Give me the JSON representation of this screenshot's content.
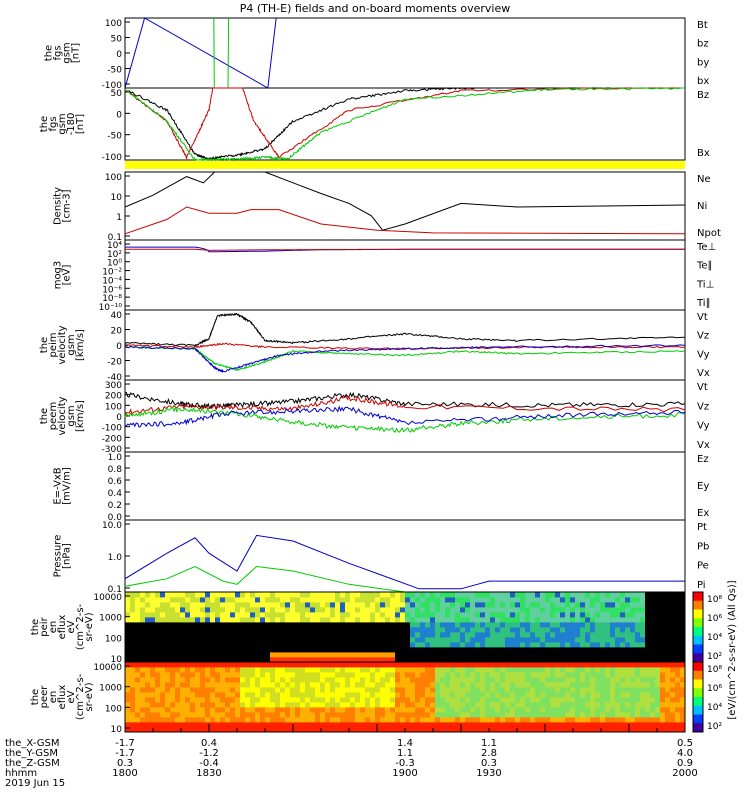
{
  "title": "P4 (TH-E) fields and on-board moments overview",
  "colors": {
    "black": "#000000",
    "red": "#cc0000",
    "green": "#00cc00",
    "blue": "#0000cc",
    "yellow": "#ffff00"
  },
  "chart_data": [
    {
      "type": "line",
      "panel": "fgs_gsm",
      "ylabel": [
        "the",
        "fgs",
        "gsm",
        "[nT]"
      ],
      "ylim": [
        -100,
        100
      ],
      "ticks": [
        "100",
        "50",
        "0",
        "-50",
        "-100"
      ],
      "legend": [
        {
          "name": "Bt",
          "color": "black"
        },
        {
          "name": "bz",
          "color": "red"
        },
        {
          "name": "by",
          "color": "green"
        },
        {
          "name": "bx",
          "color": "blue"
        }
      ],
      "series": [
        {
          "name": "bx",
          "color": "blue",
          "x": [
            1800,
            1807,
            1851,
            1854
          ],
          "y": [
            -100,
            100,
            -100,
            100
          ]
        },
        {
          "name": "by",
          "color": "green",
          "x": [
            1831.7,
            1831.9,
            1836.8,
            1837.0
          ],
          "y": [
            100,
            -100,
            -100,
            100
          ]
        }
      ]
    },
    {
      "type": "line",
      "panel": "fgs_gsm_offset",
      "ylabel": [
        "the",
        "fgs",
        "gsm",
        "-180",
        "[nT]"
      ],
      "ylim": [
        -130,
        0
      ],
      "ticks": [
        "50",
        "0",
        "-50",
        "-100"
      ],
      "legend": [
        {
          "name": "Bz",
          "color": "black"
        },
        {
          "name": "Bx",
          "color": "green"
        }
      ],
      "series": [
        {
          "name": "black",
          "color": "black",
          "x": [
            1800,
            1815,
            1825,
            1830,
            1841,
            1850,
            1860,
            1880,
            1900,
            1920,
            1940,
            2000
          ],
          "y": [
            -2,
            -40,
            -120,
            -128,
            -120,
            -110,
            -60,
            -20,
            -5,
            0,
            2,
            2
          ]
        },
        {
          "name": "red",
          "color": "red",
          "x": [
            1800,
            1815,
            1822,
            1830,
            1833,
            1838,
            1846,
            1855,
            1880,
            1920,
            2000
          ],
          "y": [
            -3,
            -60,
            -125,
            -40,
            50,
            60,
            -60,
            -125,
            -40,
            -5,
            2
          ]
        },
        {
          "name": "green",
          "color": "green",
          "x": [
            1800,
            1815,
            1825,
            1830,
            1841,
            1850,
            1858,
            1870,
            1900,
            1950,
            2000
          ],
          "y": [
            -2,
            -60,
            -130,
            -130,
            -128,
            -125,
            -128,
            -80,
            -20,
            -3,
            0
          ]
        }
      ]
    },
    {
      "type": "line",
      "panel": "density",
      "ylabel": [
        "Density",
        "[cm-3]"
      ],
      "ylim": [
        0.1,
        200
      ],
      "ticks": [
        "100",
        "10",
        "1",
        "0.1"
      ],
      "legend": [
        {
          "name": "Ne",
          "color": "red"
        },
        {
          "name": "Ni",
          "color": "black"
        },
        {
          "name": "Npot",
          "color": "blue"
        }
      ],
      "series": [
        {
          "name": "Ni",
          "color": "black",
          "x": [
            1800,
            1810,
            1822,
            1828,
            1832,
            1838,
            1850,
            1860,
            1870,
            1880,
            1888,
            1892,
            1900,
            1920,
            1940,
            2000
          ],
          "y": [
            4,
            15,
            120,
            60,
            200,
            220,
            250,
            60,
            18,
            6,
            1.5,
            0.3,
            0.6,
            6,
            4,
            5
          ]
        },
        {
          "name": "Ne",
          "color": "red",
          "x": [
            1800,
            1815,
            1822,
            1830,
            1840,
            1845,
            1855,
            1870,
            1890,
            1910,
            2000
          ],
          "y": [
            0.2,
            1,
            4,
            2,
            2,
            3,
            3,
            0.6,
            0.3,
            0.22,
            0.2
          ]
        }
      ]
    },
    {
      "type": "line",
      "panel": "moms_t3",
      "ylabel": [
        "mog3",
        "[eV]"
      ],
      "ylim": [
        1e-10,
        100000.0
      ],
      "ticks": [
        "10⁴",
        "10²",
        "10⁰",
        "10⁻²",
        "10⁻⁴",
        "10⁻⁶",
        "10⁻⁸",
        "10⁻¹⁰"
      ],
      "legend": [
        {
          "name": "Te⊥",
          "color": "red"
        },
        {
          "name": "Te∥",
          "color": "black"
        },
        {
          "name": "Ti⊥",
          "color": "blue"
        },
        {
          "name": "Ti∥",
          "color": "green"
        }
      ],
      "series": [
        {
          "name": "Ti",
          "color": "blue",
          "x": [
            1800,
            1825,
            1830,
            1850,
            1870,
            1900,
            2000
          ],
          "y": [
            3000,
            3000,
            300,
            400,
            800,
            1000,
            1000
          ]
        },
        {
          "name": "Te",
          "color": "red",
          "x": [
            1800,
            1825,
            1830,
            1850,
            1870,
            1900,
            2000
          ],
          "y": [
            1000,
            1000,
            600,
            800,
            900,
            1000,
            1000
          ]
        }
      ]
    },
    {
      "type": "line",
      "panel": "peim_velocity",
      "ylabel": [
        "the",
        "peim",
        "velocity",
        "gsm",
        "[km/s]"
      ],
      "ylim": [
        -40,
        45
      ],
      "ticks": [
        "40",
        "20",
        "0",
        "-20",
        "-40"
      ],
      "legend": [
        {
          "name": "Vt",
          "color": "black"
        },
        {
          "name": "Vz",
          "color": "red"
        },
        {
          "name": "Vy",
          "color": "green"
        },
        {
          "name": "Vx",
          "color": "blue"
        }
      ],
      "series": [
        {
          "name": "Vt",
          "color": "black",
          "x": [
            1800,
            1825,
            1830,
            1833,
            1840,
            1845,
            1850,
            1860,
            1880,
            1900,
            1920,
            1940,
            2000
          ],
          "y": [
            5,
            2,
            10,
            38,
            40,
            30,
            8,
            5,
            10,
            16,
            10,
            8,
            12
          ]
        },
        {
          "name": "Vz",
          "color": "red",
          "x": [
            1800,
            1825,
            1835,
            1850,
            1900,
            1950,
            2000
          ],
          "y": [
            2,
            0,
            4,
            0,
            -2,
            0,
            0
          ]
        },
        {
          "name": "Vy",
          "color": "green",
          "x": [
            1800,
            1825,
            1832,
            1840,
            1850,
            1860,
            1880,
            1900,
            1920,
            1940,
            2000
          ],
          "y": [
            0,
            -2,
            -20,
            -28,
            -18,
            -5,
            -8,
            -10,
            -5,
            -8,
            -5
          ]
        },
        {
          "name": "Vx",
          "color": "blue",
          "x": [
            1800,
            1825,
            1832,
            1835,
            1845,
            1855,
            1870,
            1900,
            1930,
            2000
          ],
          "y": [
            0,
            -2,
            -25,
            -30,
            -20,
            -10,
            -5,
            -2,
            0,
            2
          ]
        }
      ]
    },
    {
      "type": "line",
      "panel": "peem_velocity",
      "ylabel": [
        "the",
        "peem",
        "velocity",
        "gsm",
        "[km/s]"
      ],
      "ylim": [
        -300,
        300
      ],
      "ticks": [
        "300",
        "200",
        "100",
        "0",
        "-100",
        "-200",
        "-300"
      ],
      "legend": [
        {
          "name": "Vt",
          "color": "black"
        },
        {
          "name": "Vz",
          "color": "red"
        },
        {
          "name": "Vy",
          "color": "green"
        },
        {
          "name": "Vx",
          "color": "blue"
        }
      ],
      "series": [
        {
          "name": "Vt",
          "color": "black",
          "x": [
            1800,
            1820,
            1830,
            1840,
            1860,
            1880,
            1900,
            1950,
            2000
          ],
          "y": [
            180,
            100,
            80,
            90,
            120,
            180,
            100,
            90,
            100
          ]
        },
        {
          "name": "Vz",
          "color": "red",
          "x": [
            1800,
            1820,
            1840,
            1860,
            1880,
            1900,
            2000
          ],
          "y": [
            30,
            80,
            70,
            60,
            150,
            80,
            50
          ]
        },
        {
          "name": "Vy",
          "color": "green",
          "x": [
            1800,
            1820,
            1840,
            1860,
            1880,
            1900,
            1920,
            1950,
            2000
          ],
          "y": [
            0,
            60,
            20,
            -50,
            -100,
            -120,
            -60,
            -20,
            10
          ]
        },
        {
          "name": "Vx",
          "color": "blue",
          "x": [
            1800,
            1820,
            1835,
            1860,
            1880,
            1900,
            1950,
            2000
          ],
          "y": [
            -80,
            -60,
            20,
            40,
            60,
            -60,
            0,
            30
          ]
        }
      ]
    },
    {
      "type": "line",
      "panel": "efield",
      "ylabel": [
        "E=-VxB",
        "[mV/m]"
      ],
      "ylim": [
        0,
        1.0
      ],
      "ticks": [
        "1.0",
        "0.8",
        "0.6",
        "0.4",
        "0.2",
        "0.0"
      ],
      "legend": [
        {
          "name": "Ez",
          "color": "red"
        },
        {
          "name": "Ey",
          "color": "green"
        },
        {
          "name": "Ex",
          "color": "blue"
        }
      ],
      "series": []
    },
    {
      "type": "line",
      "panel": "pressure",
      "ylabel": [
        "Pressure",
        "[nPa]"
      ],
      "ylim": [
        0.03,
        20
      ],
      "ticks": [
        "10.0",
        "1.0",
        "0.1"
      ],
      "legend": [
        {
          "name": "Pt",
          "color": "black"
        },
        {
          "name": "Pb",
          "color": "red"
        },
        {
          "name": "Pe",
          "color": "green"
        },
        {
          "name": "Pi",
          "color": "blue"
        }
      ],
      "series": [
        {
          "name": "Pi",
          "color": "blue",
          "x": [
            1800,
            1815,
            1825,
            1830,
            1840,
            1847,
            1860,
            1880,
            1905,
            1920,
            1930,
            2000
          ],
          "y": [
            0.1,
            1,
            4,
            1,
            0.2,
            5,
            3,
            0.4,
            0.04,
            0.04,
            0.08,
            0.08
          ]
        },
        {
          "name": "Pe",
          "color": "green",
          "x": [
            1800,
            1815,
            1825,
            1835,
            1840,
            1847,
            1860,
            1880,
            1900,
            1920,
            2000
          ],
          "y": [
            0.05,
            0.1,
            0.3,
            0.08,
            0.06,
            0.3,
            0.2,
            0.06,
            0.03,
            0.03,
            0.03
          ]
        }
      ]
    },
    {
      "type": "heatmap",
      "panel": "peir_eflux",
      "ylabel": [
        "the",
        "peir",
        "en",
        "eflux",
        "eV",
        "(cm^2-s-",
        "sr-eV)"
      ],
      "ticks": [
        "10000",
        "1000",
        "100",
        "10"
      ],
      "colorbar": [
        "10⁸",
        "10⁶",
        "10⁴",
        "10²"
      ],
      "zlabel": "[eV/(cm^2-s-sr-eV) (All Qs)]"
    },
    {
      "type": "heatmap",
      "panel": "peer_eflux",
      "ylabel": [
        "the",
        "peer",
        "en",
        "eflux",
        "eV",
        "(cm^2-s-",
        "sr-eV)"
      ],
      "ticks": [
        "10000",
        "1000",
        "100",
        "10"
      ],
      "colorbar": [
        "10⁸",
        "10⁶",
        "10⁴",
        "10²"
      ],
      "zlabel": "[eV/(cm^2-s-sr-eV) (All Qs)]"
    }
  ],
  "xaxis": {
    "rows": [
      {
        "label": "the_X-GSM",
        "values": [
          "-1.7",
          "0.4",
          "1.4",
          "1.1",
          "0.5"
        ]
      },
      {
        "label": "the_Y-GSM",
        "values": [
          "-1.7",
          "-1.2",
          "1.1",
          "2.8",
          "4.0"
        ]
      },
      {
        "label": "the_Z-GSM",
        "values": [
          "0.3",
          "-0.4",
          "-0.3",
          "0.3",
          "0.9"
        ]
      },
      {
        "label": "hhmm",
        "values": [
          "1800",
          "1830",
          "1900",
          "1930",
          "2000"
        ]
      }
    ],
    "date": "2019 Jun 15"
  }
}
